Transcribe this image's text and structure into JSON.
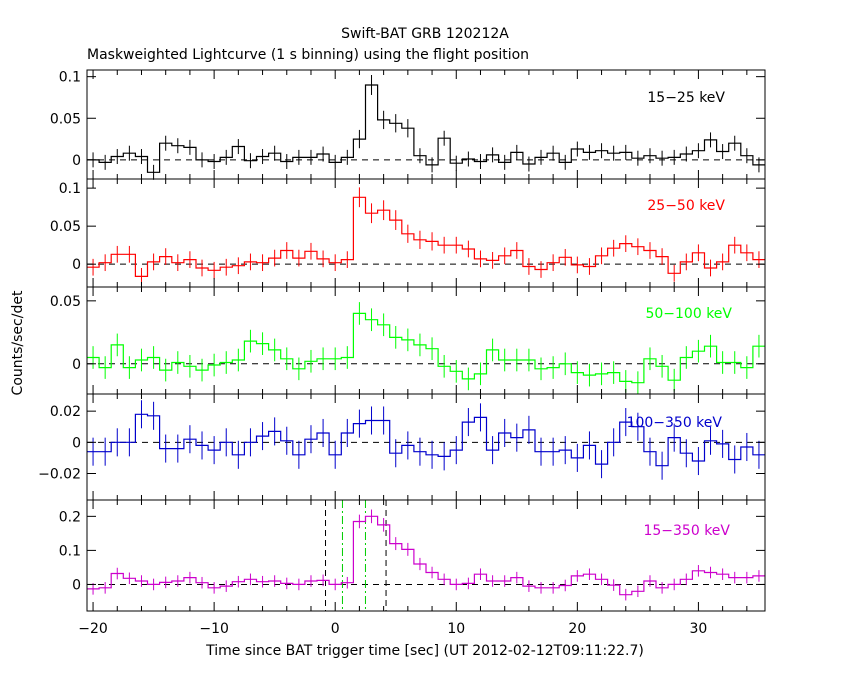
{
  "figure": {
    "title": "Swift-BAT GRB 120212A",
    "subtitle": "Maskweighted Lightcurve (1 s binning) using the flight position",
    "xlabel": "Time since BAT trigger time [sec] (UT 2012-02-12T09:11:22.7)",
    "ylabel": "Counts/sec/det"
  },
  "chart_data": [
    {
      "type": "line",
      "band": "15−25 keV",
      "color": "#000000",
      "xlim": [
        -20.5,
        35.5
      ],
      "ylim": [
        -0.023,
        0.108
      ],
      "yticks": [
        0,
        0.05,
        0.1
      ],
      "ytick_labels": [
        "0",
        "0.05",
        "0.1"
      ],
      "x_start": -20,
      "bin_width": 1,
      "values": [
        0.0,
        -0.003,
        0.004,
        0.008,
        0.004,
        -0.015,
        0.02,
        0.017,
        0.015,
        0.0,
        -0.002,
        0.003,
        0.016,
        -0.001,
        0.004,
        0.008,
        -0.002,
        0.003,
        0.003,
        0.007,
        -0.003,
        0.003,
        0.025,
        0.09,
        0.048,
        0.044,
        0.038,
        0.005,
        -0.006,
        0.026,
        -0.004,
        0.001,
        -0.002,
        0.006,
        -0.003,
        0.009,
        -0.005,
        0.003,
        0.008,
        -0.003,
        0.013,
        0.009,
        0.011,
        0.008,
        0.009,
        0.002,
        0.005,
        0.002,
        0.003,
        0.007,
        0.011,
        0.024,
        0.01,
        0.02,
        0.005,
        -0.006
      ],
      "errors": [
        0.009,
        0.009,
        0.009,
        0.009,
        0.009,
        0.009,
        0.009,
        0.009,
        0.009,
        0.009,
        0.009,
        0.009,
        0.009,
        0.009,
        0.009,
        0.009,
        0.009,
        0.009,
        0.009,
        0.009,
        0.009,
        0.009,
        0.011,
        0.012,
        0.011,
        0.011,
        0.011,
        0.009,
        0.009,
        0.009,
        0.009,
        0.009,
        0.009,
        0.009,
        0.009,
        0.009,
        0.009,
        0.009,
        0.009,
        0.009,
        0.009,
        0.009,
        0.009,
        0.009,
        0.009,
        0.009,
        0.009,
        0.009,
        0.009,
        0.009,
        0.009,
        0.009,
        0.009,
        0.009,
        0.009,
        0.009
      ]
    },
    {
      "type": "line",
      "band": "25−50 keV",
      "color": "#ff0000",
      "xlim": [
        -20.5,
        35.5
      ],
      "ylim": [
        -0.03,
        0.112
      ],
      "yticks": [
        0,
        0.05,
        0.1
      ],
      "ytick_labels": [
        "0",
        "0.05",
        "0.1"
      ],
      "x_start": -20,
      "bin_width": 1,
      "values": [
        -0.004,
        0.002,
        0.013,
        0.013,
        -0.016,
        0.003,
        0.01,
        0.002,
        0.006,
        -0.005,
        -0.008,
        -0.004,
        -0.002,
        0.003,
        0.002,
        0.008,
        0.018,
        0.008,
        0.017,
        0.007,
        0.002,
        0.006,
        0.088,
        0.067,
        0.071,
        0.058,
        0.04,
        0.032,
        0.03,
        0.025,
        0.025,
        0.02,
        0.007,
        0.005,
        0.011,
        0.018,
        -0.003,
        -0.007,
        0.002,
        0.009,
        -0.001,
        -0.003,
        0.011,
        0.021,
        0.027,
        0.023,
        0.018,
        0.01,
        -0.012,
        0.003,
        0.015,
        -0.005,
        0.003,
        0.025,
        0.015,
        0.006
      ],
      "errors": [
        0.011,
        0.011,
        0.011,
        0.011,
        0.011,
        0.011,
        0.011,
        0.011,
        0.011,
        0.011,
        0.011,
        0.011,
        0.011,
        0.011,
        0.011,
        0.011,
        0.011,
        0.011,
        0.011,
        0.011,
        0.011,
        0.011,
        0.013,
        0.013,
        0.013,
        0.013,
        0.012,
        0.012,
        0.012,
        0.011,
        0.011,
        0.011,
        0.011,
        0.011,
        0.011,
        0.011,
        0.011,
        0.011,
        0.011,
        0.011,
        0.011,
        0.011,
        0.011,
        0.011,
        0.011,
        0.011,
        0.011,
        0.011,
        0.011,
        0.011,
        0.011,
        0.011,
        0.011,
        0.011,
        0.011,
        0.011
      ]
    },
    {
      "type": "line",
      "band": "50−100 keV",
      "color": "#00ff00",
      "xlim": [
        -20.5,
        35.5
      ],
      "ylim": [
        -0.024,
        0.061
      ],
      "yticks": [
        0,
        0.05
      ],
      "ytick_labels": [
        "0",
        "0.05"
      ],
      "x_start": -20,
      "bin_width": 1,
      "values": [
        0.005,
        -0.003,
        0.015,
        -0.003,
        0.003,
        0.005,
        -0.005,
        0.001,
        -0.002,
        -0.005,
        -0.001,
        0.001,
        0.003,
        0.018,
        0.016,
        0.011,
        0.004,
        -0.004,
        0.002,
        0.004,
        0.004,
        0.005,
        0.04,
        0.035,
        0.031,
        0.021,
        0.019,
        0.015,
        0.012,
        -0.002,
        -0.006,
        -0.012,
        -0.008,
        0.011,
        0.003,
        0.003,
        0.003,
        -0.004,
        -0.003,
        0.0,
        -0.007,
        -0.009,
        -0.008,
        -0.007,
        -0.014,
        -0.015,
        0.004,
        -0.002,
        -0.013,
        0.005,
        0.01,
        0.014,
        0.001,
        0.001,
        -0.003,
        0.014
      ],
      "errors": [
        0.009,
        0.009,
        0.009,
        0.009,
        0.009,
        0.009,
        0.009,
        0.009,
        0.009,
        0.009,
        0.009,
        0.009,
        0.009,
        0.009,
        0.009,
        0.009,
        0.009,
        0.009,
        0.009,
        0.009,
        0.009,
        0.009,
        0.009,
        0.009,
        0.009,
        0.009,
        0.009,
        0.009,
        0.009,
        0.009,
        0.009,
        0.009,
        0.009,
        0.009,
        0.009,
        0.009,
        0.009,
        0.009,
        0.009,
        0.009,
        0.009,
        0.009,
        0.009,
        0.009,
        0.009,
        0.009,
        0.009,
        0.009,
        0.009,
        0.009,
        0.009,
        0.009,
        0.009,
        0.009,
        0.009,
        0.009
      ]
    },
    {
      "type": "line",
      "band": "100−350 keV",
      "color": "#0000cc",
      "xlim": [
        -20.5,
        35.5
      ],
      "ylim": [
        -0.037,
        0.031
      ],
      "yticks": [
        -0.02,
        0,
        0.02
      ],
      "ytick_labels": [
        "−0.02",
        "0",
        "0.02"
      ],
      "x_start": -20,
      "bin_width": 1,
      "values": [
        -0.006,
        -0.006,
        0.0,
        0.0,
        0.018,
        0.017,
        -0.004,
        -0.004,
        0.002,
        -0.002,
        -0.005,
        0.0,
        -0.008,
        0.0,
        0.004,
        0.007,
        0.001,
        -0.008,
        0.002,
        0.006,
        -0.008,
        0.006,
        0.012,
        0.014,
        0.014,
        -0.007,
        -0.002,
        -0.006,
        -0.008,
        -0.009,
        -0.005,
        0.013,
        0.016,
        -0.005,
        0.006,
        0.003,
        0.008,
        -0.006,
        -0.006,
        -0.005,
        -0.01,
        -0.002,
        -0.014,
        0.0,
        0.013,
        0.01,
        -0.006,
        -0.015,
        0.003,
        -0.007,
        -0.012,
        0.001,
        -0.001,
        -0.011,
        -0.003,
        -0.008
      ],
      "errors": [
        0.009,
        0.009,
        0.009,
        0.009,
        0.009,
        0.009,
        0.009,
        0.009,
        0.009,
        0.009,
        0.009,
        0.009,
        0.009,
        0.009,
        0.009,
        0.009,
        0.009,
        0.009,
        0.009,
        0.009,
        0.009,
        0.009,
        0.009,
        0.009,
        0.009,
        0.009,
        0.009,
        0.009,
        0.009,
        0.009,
        0.009,
        0.009,
        0.009,
        0.009,
        0.009,
        0.009,
        0.009,
        0.009,
        0.009,
        0.009,
        0.009,
        0.009,
        0.009,
        0.009,
        0.009,
        0.009,
        0.009,
        0.009,
        0.009,
        0.009,
        0.009,
        0.009,
        0.009,
        0.009,
        0.009,
        0.009
      ]
    },
    {
      "type": "line",
      "band": "15−350 keV",
      "color": "#cc00cc",
      "xlim": [
        -20.5,
        35.5
      ],
      "ylim": [
        -0.078,
        0.248
      ],
      "yticks": [
        0,
        0.1,
        0.2
      ],
      "ytick_labels": [
        "0",
        "0.1",
        "0.2"
      ],
      "x_start": -20,
      "bin_width": 1,
      "values": [
        -0.013,
        -0.01,
        0.032,
        0.018,
        0.01,
        0.0,
        0.006,
        0.01,
        0.02,
        0.005,
        -0.01,
        -0.005,
        0.008,
        0.015,
        0.008,
        0.01,
        0.003,
        0.0,
        0.01,
        0.012,
        0.0,
        0.005,
        0.185,
        0.2,
        0.175,
        0.12,
        0.103,
        0.06,
        0.035,
        0.015,
        0.0,
        0.003,
        0.03,
        0.01,
        0.01,
        0.02,
        -0.005,
        -0.01,
        -0.01,
        -0.003,
        0.025,
        0.03,
        0.015,
        -0.002,
        -0.03,
        -0.02,
        0.01,
        -0.01,
        0.0,
        0.015,
        0.04,
        0.035,
        0.03,
        0.02,
        0.02,
        0.025
      ],
      "errors": [
        0.017,
        0.017,
        0.017,
        0.017,
        0.017,
        0.017,
        0.017,
        0.017,
        0.017,
        0.017,
        0.017,
        0.017,
        0.017,
        0.017,
        0.017,
        0.017,
        0.017,
        0.017,
        0.017,
        0.017,
        0.017,
        0.017,
        0.02,
        0.02,
        0.02,
        0.019,
        0.019,
        0.018,
        0.017,
        0.017,
        0.017,
        0.017,
        0.017,
        0.017,
        0.017,
        0.017,
        0.017,
        0.017,
        0.017,
        0.017,
        0.017,
        0.017,
        0.017,
        0.017,
        0.017,
        0.017,
        0.017,
        0.017,
        0.017,
        0.017,
        0.017,
        0.017,
        0.017,
        0.017,
        0.017,
        0.017
      ],
      "marker_lines": [
        {
          "x": -0.8,
          "color": "#000000"
        },
        {
          "x": 0.6,
          "color": "#00cc00"
        },
        {
          "x": 2.5,
          "color": "#00cc00"
        },
        {
          "x": 4.2,
          "color": "#000000"
        }
      ]
    }
  ],
  "x_axis": {
    "ticks": [
      -20,
      -10,
      0,
      10,
      20,
      30
    ],
    "tick_labels": [
      "−20",
      "−10",
      "0",
      "10",
      "20",
      "30"
    ]
  }
}
